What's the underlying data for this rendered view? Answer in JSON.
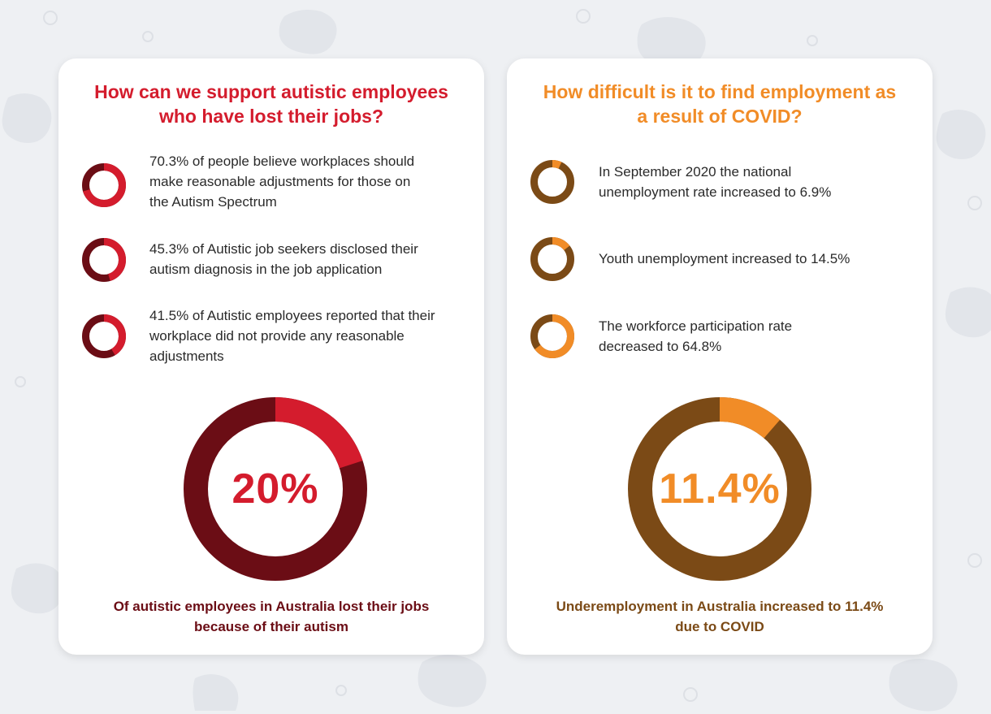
{
  "colors": {
    "red": "#d41c2d",
    "dark_red": "#6b0d15",
    "orange": "#f18c27",
    "brown": "#7b4a16",
    "background": "#eef0f3"
  },
  "left_card": {
    "title_line1": "How can we support autistic employees",
    "title_line2": "who have lost their jobs?",
    "stats": [
      {
        "percent": 70.3,
        "line1": "70.3% of people believe workplaces should",
        "line2": "make reasonable adjustments for those on",
        "line3": "the Autism Spectrum"
      },
      {
        "percent": 45.3,
        "line1": "45.3% of Autistic job seekers disclosed their",
        "line2": "autism diagnosis in the job application"
      },
      {
        "percent": 41.5,
        "line1": "41.5% of Autistic employees reported that their",
        "line2": "workplace did not provide any reasonable",
        "line3": "adjustments"
      }
    ],
    "big_stat": {
      "percent": 20,
      "label": "20%"
    },
    "footer_line1": "Of autistic employees in Australia lost their jobs",
    "footer_line2": "because of their autism"
  },
  "right_card": {
    "title_line1": "How difficult is it to find employment as",
    "title_line2": "a result of COVID?",
    "stats": [
      {
        "percent": 6.9,
        "line1": "In September 2020 the national",
        "line2": "unemployment rate increased to 6.9%"
      },
      {
        "percent": 14.5,
        "line1": "Youth unemployment increased to 14.5%"
      },
      {
        "percent": 64.8,
        "line1": "The workforce participation rate",
        "line2": "decreased to 64.8%"
      }
    ],
    "big_stat": {
      "percent": 11.4,
      "label": "11.4%"
    },
    "footer_line1": "Underemployment in Australia increased to 11.4%",
    "footer_line2": "due to COVID"
  }
}
